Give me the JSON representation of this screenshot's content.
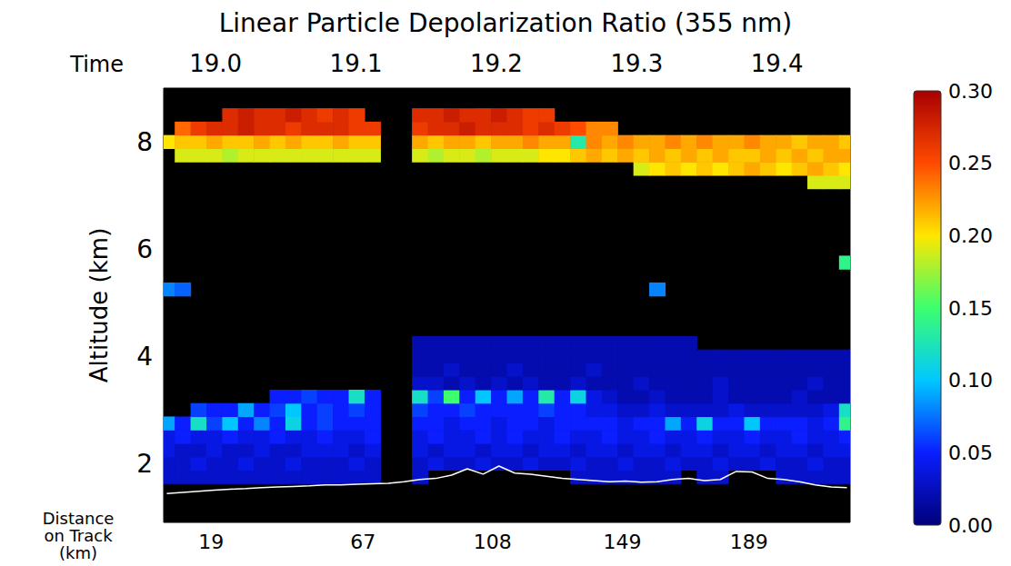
{
  "chart_data": {
    "type": "heatmap",
    "title": "Linear Particle Depolarization Ratio (355 nm)",
    "x_label": "Distance on Track (km)",
    "x2_label": "Time",
    "y_label": "Altitude (km)",
    "x": [
      5,
      10,
      15,
      20,
      25,
      30,
      35,
      40,
      45,
      50,
      55,
      60,
      65,
      70,
      75,
      80,
      85,
      90,
      95,
      100,
      105,
      110,
      115,
      120,
      125,
      130,
      135,
      140,
      145,
      150,
      155,
      160,
      165,
      170,
      175,
      180,
      185,
      190,
      195,
      200,
      205,
      210,
      215,
      220
    ],
    "y": [
      1.75,
      2.0,
      2.25,
      2.5,
      2.75,
      3.0,
      3.25,
      3.5,
      3.75,
      4.0,
      4.25,
      5.25,
      5.75,
      7.25,
      7.5,
      7.75,
      8.0,
      8.25,
      8.5
    ],
    "cells": [
      [
        0.03,
        0.03,
        0.03,
        0.03,
        0.03,
        0.03,
        0.03,
        0.03,
        0.03,
        0.03,
        0.03,
        0.03,
        0.03,
        0.03,
        null,
        null,
        0.03,
        null,
        null,
        null,
        null,
        null,
        null,
        null,
        null,
        null,
        0.03,
        0.03,
        0.03,
        0.03,
        0.03,
        0.03,
        0.03,
        null,
        0.03,
        0.03,
        null,
        null,
        null,
        0.03,
        0.03,
        0.03,
        0.03,
        0.03
      ],
      [
        0.03,
        0.03,
        0.04,
        0.03,
        0.03,
        0.04,
        0.03,
        0.03,
        0.04,
        0.03,
        0.03,
        0.03,
        0.04,
        0.03,
        null,
        null,
        0.03,
        0.04,
        0.03,
        0.03,
        0.04,
        0.03,
        0.03,
        0.04,
        0.03,
        0.03,
        0.04,
        0.03,
        0.03,
        0.04,
        0.03,
        0.03,
        0.04,
        0.03,
        0.03,
        0.04,
        0.03,
        0.03,
        0.04,
        0.03,
        0.03,
        0.04,
        0.03,
        0.03
      ],
      [
        0.04,
        0.03,
        0.03,
        0.04,
        0.03,
        0.03,
        0.04,
        0.03,
        0.03,
        0.04,
        0.04,
        0.04,
        0.03,
        0.04,
        null,
        null,
        0.04,
        0.03,
        0.04,
        0.04,
        0.03,
        0.04,
        0.04,
        0.03,
        0.04,
        0.04,
        0.03,
        0.04,
        0.04,
        0.03,
        0.04,
        0.04,
        0.03,
        0.04,
        0.04,
        0.03,
        0.04,
        0.04,
        0.03,
        0.04,
        0.04,
        0.03,
        0.04,
        0.04
      ],
      [
        0.04,
        0.05,
        0.04,
        0.04,
        0.05,
        0.04,
        0.04,
        0.05,
        0.04,
        0.04,
        0.05,
        0.04,
        0.04,
        0.05,
        null,
        null,
        0.04,
        0.05,
        0.04,
        0.04,
        0.05,
        0.04,
        0.05,
        0.04,
        0.04,
        0.05,
        0.04,
        0.04,
        0.05,
        0.04,
        0.04,
        0.05,
        0.04,
        0.04,
        0.05,
        0.04,
        0.04,
        0.05,
        0.04,
        0.04,
        0.05,
        0.04,
        0.04,
        0.05
      ],
      [
        0.09,
        0.05,
        0.12,
        0.06,
        0.1,
        0.05,
        0.08,
        0.05,
        0.11,
        0.05,
        0.06,
        0.05,
        0.05,
        0.05,
        null,
        null,
        0.05,
        0.05,
        0.04,
        0.05,
        0.05,
        0.04,
        0.05,
        0.05,
        0.04,
        0.05,
        0.05,
        0.05,
        0.05,
        0.04,
        0.05,
        0.05,
        0.09,
        0.05,
        0.11,
        0.05,
        0.05,
        0.1,
        0.05,
        0.05,
        0.05,
        0.04,
        0.05,
        0.14
      ],
      [
        null,
        null,
        0.06,
        0.05,
        0.05,
        0.09,
        0.05,
        0.06,
        0.1,
        0.05,
        0.06,
        0.05,
        0.06,
        0.05,
        null,
        null,
        0.06,
        0.05,
        0.05,
        0.06,
        0.05,
        0.05,
        0.05,
        0.05,
        0.06,
        0.05,
        0.05,
        0.04,
        0.04,
        0.03,
        0.03,
        0.04,
        0.03,
        0.03,
        0.03,
        0.03,
        0.04,
        0.03,
        0.03,
        0.03,
        0.03,
        0.03,
        0.04,
        0.12
      ],
      [
        null,
        null,
        null,
        null,
        null,
        null,
        null,
        0.05,
        0.05,
        0.06,
        0.05,
        0.05,
        0.12,
        0.05,
        null,
        null,
        0.12,
        0.06,
        0.15,
        0.05,
        0.1,
        0.05,
        0.09,
        0.05,
        0.13,
        0.05,
        0.11,
        0.04,
        0.03,
        0.02,
        0.02,
        0.03,
        0.02,
        0.02,
        0.02,
        0.03,
        0.02,
        0.02,
        0.02,
        0.02,
        0.03,
        0.02,
        0.02,
        0.02
      ],
      [
        null,
        null,
        null,
        null,
        null,
        null,
        null,
        null,
        null,
        null,
        null,
        null,
        null,
        null,
        null,
        null,
        0.03,
        0.03,
        0.02,
        0.03,
        0.02,
        0.03,
        0.02,
        0.03,
        0.02,
        0.02,
        0.03,
        0.02,
        0.02,
        0.02,
        0.03,
        0.02,
        0.02,
        0.02,
        0.02,
        0.03,
        0.02,
        0.02,
        0.02,
        0.02,
        0.02,
        0.03,
        0.02,
        0.02
      ],
      [
        null,
        null,
        null,
        null,
        null,
        null,
        null,
        null,
        null,
        null,
        null,
        null,
        null,
        null,
        null,
        null,
        0.02,
        0.02,
        0.03,
        0.02,
        0.02,
        0.02,
        0.03,
        0.02,
        0.02,
        0.02,
        0.02,
        0.03,
        0.02,
        0.02,
        0.02,
        0.02,
        0.02,
        0.02,
        0.02,
        0.02,
        0.02,
        0.02,
        0.02,
        0.02,
        0.02,
        0.02,
        0.02,
        0.02
      ],
      [
        null,
        null,
        null,
        null,
        null,
        null,
        null,
        null,
        null,
        null,
        null,
        null,
        null,
        null,
        null,
        null,
        0.02,
        0.02,
        0.02,
        0.02,
        0.02,
        0.02,
        0.02,
        0.02,
        0.02,
        0.02,
        0.02,
        0.02,
        0.02,
        0.02,
        0.02,
        0.02,
        0.02,
        0.02,
        0.02,
        0.02,
        0.02,
        0.02,
        0.02,
        0.02,
        0.02,
        0.02,
        0.02,
        0.02
      ],
      [
        null,
        null,
        null,
        null,
        null,
        null,
        null,
        null,
        null,
        null,
        null,
        null,
        null,
        null,
        null,
        null,
        0.02,
        0.02,
        0.02,
        0.02,
        0.02,
        0.02,
        0.02,
        0.02,
        0.02,
        0.02,
        0.02,
        0.02,
        0.02,
        0.02,
        0.02,
        0.02,
        0.02,
        0.02,
        null,
        null,
        null,
        null,
        null,
        null,
        null,
        null,
        null,
        null
      ],
      [
        0.08,
        0.07,
        null,
        null,
        null,
        null,
        null,
        null,
        null,
        null,
        null,
        null,
        null,
        null,
        null,
        null,
        null,
        null,
        null,
        null,
        null,
        null,
        null,
        null,
        null,
        null,
        null,
        null,
        null,
        null,
        null,
        0.08,
        null,
        null,
        null,
        null,
        null,
        null,
        null,
        null,
        null,
        null,
        null,
        null
      ],
      [
        null,
        null,
        null,
        null,
        null,
        null,
        null,
        null,
        null,
        null,
        null,
        null,
        null,
        null,
        null,
        null,
        null,
        null,
        null,
        null,
        null,
        null,
        null,
        null,
        null,
        null,
        null,
        null,
        null,
        null,
        null,
        null,
        null,
        null,
        null,
        null,
        null,
        null,
        null,
        null,
        null,
        null,
        null,
        0.14
      ],
      [
        null,
        null,
        null,
        null,
        null,
        null,
        null,
        null,
        null,
        null,
        null,
        null,
        null,
        null,
        null,
        null,
        null,
        null,
        null,
        null,
        null,
        null,
        null,
        null,
        null,
        null,
        null,
        null,
        null,
        null,
        null,
        null,
        null,
        null,
        null,
        null,
        null,
        null,
        null,
        null,
        null,
        0.19,
        0.19,
        0.19
      ],
      [
        null,
        null,
        null,
        null,
        null,
        null,
        null,
        null,
        null,
        null,
        null,
        null,
        null,
        null,
        null,
        null,
        null,
        null,
        null,
        null,
        null,
        null,
        null,
        null,
        null,
        null,
        null,
        null,
        null,
        null,
        0.19,
        0.2,
        0.21,
        0.2,
        0.21,
        0.2,
        0.21,
        0.22,
        0.21,
        0.2,
        0.21,
        0.22,
        0.21,
        0.2
      ],
      [
        null,
        0.19,
        0.19,
        0.19,
        0.18,
        0.19,
        0.19,
        0.19,
        0.19,
        0.19,
        0.19,
        0.19,
        0.19,
        0.19,
        null,
        null,
        0.19,
        0.18,
        0.19,
        0.19,
        0.18,
        0.19,
        0.19,
        0.19,
        0.2,
        0.2,
        0.21,
        0.22,
        0.21,
        0.22,
        0.21,
        0.22,
        0.21,
        0.22,
        0.21,
        0.22,
        0.21,
        0.21,
        0.22,
        0.21,
        0.22,
        0.21,
        0.22,
        0.22
      ],
      [
        0.2,
        0.21,
        0.21,
        0.22,
        0.21,
        0.21,
        0.22,
        0.21,
        0.22,
        0.21,
        0.21,
        0.22,
        0.21,
        0.21,
        null,
        null,
        0.22,
        0.21,
        0.22,
        0.22,
        0.21,
        0.22,
        0.22,
        0.23,
        0.22,
        0.22,
        0.13,
        0.23,
        0.22,
        0.23,
        0.22,
        0.22,
        0.23,
        0.22,
        0.23,
        0.22,
        0.22,
        0.23,
        0.22,
        0.22,
        0.21,
        0.22,
        0.22,
        0.21
      ],
      [
        null,
        0.24,
        0.26,
        0.27,
        0.27,
        0.28,
        0.27,
        0.27,
        0.26,
        0.27,
        0.27,
        0.27,
        0.26,
        0.26,
        null,
        null,
        0.26,
        0.27,
        0.27,
        0.28,
        0.27,
        0.27,
        0.27,
        0.26,
        0.27,
        0.26,
        0.25,
        0.23,
        0.23,
        null,
        null,
        null,
        null,
        null,
        null,
        null,
        null,
        null,
        null,
        null,
        null,
        null,
        null,
        null
      ],
      [
        null,
        null,
        null,
        null,
        0.27,
        0.28,
        0.27,
        0.27,
        0.28,
        0.27,
        0.26,
        0.27,
        0.26,
        null,
        null,
        null,
        0.27,
        0.27,
        0.28,
        0.27,
        0.27,
        0.28,
        0.27,
        0.26,
        0.26,
        null,
        null,
        null,
        null,
        null,
        null,
        null,
        null,
        null,
        null,
        null,
        null,
        null,
        null,
        null,
        null,
        null,
        null,
        null
      ]
    ],
    "xlim": [
      4,
      221
    ],
    "xticks": [
      19,
      67,
      108,
      149,
      189
    ],
    "x2lim": [
      18.963,
      19.452
    ],
    "x2ticks": [
      {
        "value": 19,
        "label": "19.0"
      },
      19.1,
      19.2,
      19.3,
      19.4
    ],
    "ylim": [
      0.9,
      9.0
    ],
    "yticks": [
      2,
      4,
      6,
      8
    ],
    "colorbar": {
      "range": [
        0,
        0.3
      ],
      "ticks": [
        {
          "value": 0,
          "label": "0.00"
        },
        0.05,
        {
          "value": 0.1,
          "label": "0.10"
        },
        0.15,
        {
          "value": 0.2,
          "label": "0.20"
        },
        0.25,
        {
          "value": 0.3,
          "label": "0.30"
        }
      ]
    },
    "surface": {
      "x": [
        5,
        10,
        15,
        20,
        25,
        30,
        35,
        40,
        45,
        50,
        55,
        60,
        65,
        70,
        75,
        80,
        85,
        90,
        95,
        100,
        105,
        110,
        115,
        120,
        125,
        130,
        135,
        140,
        145,
        150,
        155,
        160,
        165,
        170,
        175,
        180,
        185,
        190,
        195,
        200,
        205,
        210,
        215,
        220
      ],
      "values": [
        1.44,
        1.46,
        1.48,
        1.5,
        1.52,
        1.53,
        1.55,
        1.56,
        1.57,
        1.58,
        1.6,
        1.6,
        1.61,
        1.62,
        1.63,
        1.66,
        1.7,
        1.72,
        1.78,
        1.9,
        1.8,
        1.95,
        1.82,
        1.8,
        1.76,
        1.72,
        1.7,
        1.68,
        1.66,
        1.67,
        1.65,
        1.66,
        1.7,
        1.72,
        1.68,
        1.7,
        1.85,
        1.84,
        1.72,
        1.7,
        1.66,
        1.6,
        1.56,
        1.55
      ],
      "color": "#ffffff"
    },
    "grid": false
  }
}
